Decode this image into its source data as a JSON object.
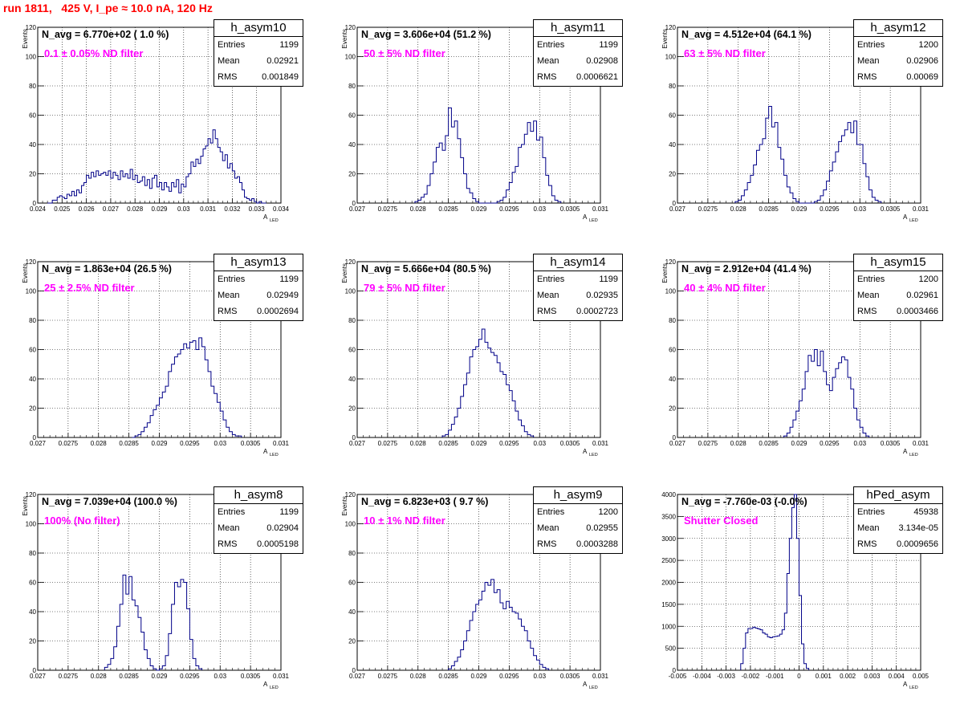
{
  "header": {
    "run_title": "run 1811,   425 V, I_pe ≈ 10.0 nA, 120 Hz"
  },
  "stat_labels": {
    "entries": "Entries",
    "mean": "Mean",
    "rms": "RMS"
  },
  "chart_data": [
    {
      "type": "histogram",
      "name": "h_asym10",
      "navg": "N_avg = 6.770e+02 ( 1.0 %)",
      "filter": "0.1 ± 0.05% ND filter",
      "entries": "1199",
      "mean": "0.02921",
      "rms": "0.001849",
      "xlabel": "A",
      "xlabel_sub": "LED",
      "ylabel": "Events",
      "xlim": [
        0.024,
        0.034
      ],
      "ylim": [
        0,
        120
      ],
      "xticks": [
        "0.024",
        "0.025",
        "0.026",
        "0.027",
        "0.028",
        "0.029",
        "0.03",
        "0.031",
        "0.032",
        "0.033",
        "0.034"
      ],
      "yticks": [
        "0",
        "20",
        "40",
        "60",
        "80",
        "100",
        "120"
      ],
      "x_start": 0.0244,
      "bin_width": 0.0001,
      "values": [
        0,
        0,
        2,
        2,
        4,
        5,
        4,
        3,
        6,
        5,
        8,
        5,
        9,
        7,
        12,
        14,
        19,
        17,
        21,
        18,
        22,
        19,
        20,
        21,
        19,
        22,
        17,
        21,
        19,
        16,
        22,
        18,
        20,
        17,
        23,
        16,
        19,
        14,
        15,
        18,
        12,
        16,
        10,
        17,
        19,
        11,
        14,
        9,
        14,
        11,
        8,
        14,
        11,
        16,
        7,
        13,
        11,
        18,
        20,
        28,
        25,
        30,
        27,
        32,
        37,
        39,
        44,
        41,
        50,
        44,
        38,
        35,
        29,
        33,
        24,
        27,
        22,
        17,
        18,
        14,
        9,
        4,
        3,
        2,
        3,
        1,
        0,
        1,
        0,
        0
      ]
    },
    {
      "type": "histogram",
      "name": "h_asym11",
      "navg": "N_avg = 3.606e+04 (51.2 %)",
      "filter": "50 ± 5% ND filter",
      "entries": "1199",
      "mean": "0.02908",
      "rms": "0.0006621",
      "xlabel": "A",
      "xlabel_sub": "LED",
      "ylabel": "Events",
      "xlim": [
        0.027,
        0.031
      ],
      "ylim": [
        0,
        120
      ],
      "xticks": [
        "0.027",
        "0.0275",
        "0.028",
        "0.0285",
        "0.029",
        "0.0295",
        "0.03",
        "0.0305",
        "0.031"
      ],
      "yticks": [
        "0",
        "20",
        "40",
        "60",
        "80",
        "100",
        "120"
      ],
      "x_start": 0.02795,
      "bin_width": 5e-05,
      "values": [
        1,
        2,
        4,
        6,
        12,
        20,
        28,
        38,
        41,
        36,
        46,
        65,
        52,
        56,
        44,
        31,
        20,
        10,
        7,
        3,
        1,
        0,
        0,
        0,
        0,
        0,
        0,
        1,
        2,
        4,
        9,
        14,
        21,
        25,
        38,
        40,
        47,
        55,
        49,
        56,
        43,
        45,
        31,
        19,
        12,
        5,
        2,
        1
      ]
    },
    {
      "type": "histogram",
      "name": "h_asym12",
      "navg": "N_avg = 4.512e+04 (64.1 %)",
      "filter": "63 ± 5% ND filter",
      "entries": "1200",
      "mean": "0.02906",
      "rms": "0.00069",
      "xlabel": "A",
      "xlabel_sub": "LED",
      "ylabel": "Events",
      "xlim": [
        0.027,
        0.031
      ],
      "ylim": [
        0,
        120
      ],
      "xticks": [
        "0.027",
        "0.0275",
        "0.028",
        "0.0285",
        "0.029",
        "0.0295",
        "0.03",
        "0.0305",
        "0.031"
      ],
      "yticks": [
        "0",
        "20",
        "40",
        "60",
        "80",
        "100",
        "120"
      ],
      "x_start": 0.02795,
      "bin_width": 5e-05,
      "values": [
        1,
        2,
        5,
        9,
        14,
        19,
        26,
        36,
        40,
        44,
        58,
        66,
        52,
        55,
        38,
        30,
        19,
        11,
        7,
        3,
        1,
        0,
        0,
        0,
        0,
        0,
        1,
        2,
        5,
        9,
        15,
        22,
        28,
        35,
        42,
        46,
        50,
        55,
        48,
        56,
        40,
        40,
        27,
        18,
        9,
        4,
        2,
        1
      ]
    },
    {
      "type": "histogram",
      "name": "h_asym13",
      "navg": "N_avg = 1.863e+04 (26.5 %)",
      "filter": "25 ± 2.5% ND filter",
      "entries": "1199",
      "mean": "0.02949",
      "rms": "0.0002694",
      "xlabel": "A",
      "xlabel_sub": "LED",
      "ylabel": "Events",
      "xlim": [
        0.027,
        0.031
      ],
      "ylim": [
        0,
        120
      ],
      "xticks": [
        "0.027",
        "0.0275",
        "0.028",
        "0.0285",
        "0.029",
        "0.0295",
        "0.03",
        "0.0305",
        "0.031"
      ],
      "yticks": [
        "0",
        "20",
        "40",
        "60",
        "80",
        "100",
        "120"
      ],
      "x_start": 0.02855,
      "bin_width": 5e-05,
      "values": [
        0,
        1,
        2,
        4,
        7,
        10,
        15,
        19,
        22,
        27,
        31,
        35,
        45,
        50,
        55,
        57,
        60,
        64,
        61,
        65,
        66,
        60,
        68,
        62,
        53,
        45,
        35,
        30,
        24,
        18,
        12,
        7,
        4,
        2,
        1,
        1
      ]
    },
    {
      "type": "histogram",
      "name": "h_asym14",
      "navg": "N_avg = 5.666e+04 (80.5 %)",
      "filter": "79 ± 5% ND filter",
      "entries": "1199",
      "mean": "0.02935",
      "rms": "0.0002723",
      "xlabel": "A",
      "xlabel_sub": "LED",
      "ylabel": "Events",
      "xlim": [
        0.027,
        0.031
      ],
      "ylim": [
        0,
        120
      ],
      "xticks": [
        "0.027",
        "0.0275",
        "0.028",
        "0.0285",
        "0.029",
        "0.0295",
        "0.03",
        "0.0305",
        "0.031"
      ],
      "yticks": [
        "0",
        "20",
        "40",
        "60",
        "80",
        "100",
        "120"
      ],
      "x_start": 0.0284,
      "bin_width": 5e-05,
      "values": [
        1,
        2,
        5,
        9,
        14,
        20,
        28,
        36,
        44,
        55,
        60,
        62,
        67,
        74,
        65,
        61,
        58,
        56,
        51,
        45,
        43,
        36,
        32,
        25,
        18,
        12,
        8,
        4,
        2,
        1
      ]
    },
    {
      "type": "histogram",
      "name": "h_asym15",
      "navg": "N_avg = 2.912e+04 (41.4 %)",
      "filter": "40 ± 4% ND filter",
      "entries": "1200",
      "mean": "0.02961",
      "rms": "0.0003466",
      "xlabel": "A",
      "xlabel_sub": "LED",
      "ylabel": "Events",
      "xlim": [
        0.027,
        0.031
      ],
      "ylim": [
        0,
        120
      ],
      "xticks": [
        "0.027",
        "0.0275",
        "0.028",
        "0.0285",
        "0.029",
        "0.0295",
        "0.03",
        "0.0305",
        "0.031"
      ],
      "yticks": [
        "0",
        "20",
        "40",
        "60",
        "80",
        "100",
        "120"
      ],
      "x_start": 0.02875,
      "bin_width": 5e-05,
      "values": [
        1,
        3,
        7,
        12,
        18,
        25,
        33,
        45,
        56,
        52,
        60,
        49,
        59,
        45,
        36,
        32,
        41,
        47,
        51,
        55,
        53,
        41,
        33,
        20,
        12,
        7,
        3,
        1
      ]
    },
    {
      "type": "histogram",
      "name": "h_asym8",
      "navg": "N_avg = 7.039e+04 (100.0 %)",
      "filter": "100% (No filter)",
      "entries": "1199",
      "mean": "0.02904",
      "rms": "0.0005198",
      "xlabel": "A",
      "xlabel_sub": "LED",
      "ylabel": "Events",
      "xlim": [
        0.027,
        0.031
      ],
      "ylim": [
        0,
        120
      ],
      "xticks": [
        "0.027",
        "0.0275",
        "0.028",
        "0.0285",
        "0.029",
        "0.0295",
        "0.03",
        "0.0305",
        "0.031"
      ],
      "yticks": [
        "0",
        "20",
        "40",
        "60",
        "80",
        "100",
        "120"
      ],
      "x_start": 0.0281,
      "bin_width": 5e-05,
      "values": [
        2,
        4,
        8,
        16,
        30,
        45,
        65,
        52,
        64,
        48,
        44,
        36,
        26,
        14,
        8,
        3,
        1,
        0,
        1,
        3,
        10,
        25,
        45,
        60,
        57,
        62,
        60,
        42,
        21,
        8,
        3,
        1
      ]
    },
    {
      "type": "histogram",
      "name": "h_asym9",
      "navg": "N_avg = 6.823e+03 ( 9.7 %)",
      "filter": "10 ± 1% ND filter",
      "entries": "1200",
      "mean": "0.02955",
      "rms": "0.0003288",
      "xlabel": "A",
      "xlabel_sub": "LED",
      "ylabel": "Events",
      "xlim": [
        0.027,
        0.031
      ],
      "ylim": [
        0,
        120
      ],
      "xticks": [
        "0.027",
        "0.0275",
        "0.028",
        "0.0285",
        "0.029",
        "0.0295",
        "0.03",
        "0.0305",
        "0.031"
      ],
      "yticks": [
        "0",
        "20",
        "40",
        "60",
        "80",
        "100",
        "120"
      ],
      "x_start": 0.0285,
      "bin_width": 5e-05,
      "values": [
        1,
        3,
        6,
        9,
        14,
        20,
        27,
        34,
        40,
        45,
        48,
        54,
        60,
        58,
        62,
        53,
        55,
        46,
        42,
        47,
        43,
        40,
        39,
        35,
        30,
        27,
        20,
        15,
        10,
        7,
        4,
        2,
        1
      ]
    },
    {
      "type": "histogram",
      "name": "hPed_asym",
      "navg": "N_avg = -7.760e-03 (-0.0%)",
      "filter": "Shutter Closed",
      "entries": "45938",
      "mean": "3.134e-05",
      "rms": "0.0009656",
      "xlabel": "A",
      "xlabel_sub": "LED",
      "ylabel": "",
      "xlim": [
        -0.005,
        0.005
      ],
      "ylim": [
        0,
        4000
      ],
      "xticks": [
        "-0.005",
        "-0.004",
        "-0.003",
        "-0.002",
        "-0.001",
        "0",
        "0.001",
        "0.002",
        "0.003",
        "0.004",
        "0.005"
      ],
      "yticks": [
        "0",
        "500",
        "1000",
        "1500",
        "2000",
        "2500",
        "3000",
        "3500",
        "4000"
      ],
      "x_start": -0.0024,
      "bin_width": 0.0001,
      "values": [
        150,
        500,
        850,
        950,
        950,
        980,
        960,
        940,
        920,
        850,
        820,
        760,
        740,
        760,
        770,
        780,
        820,
        920,
        1300,
        2200,
        3000,
        3700,
        4000,
        3000,
        1700,
        600,
        150,
        40
      ]
    }
  ]
}
